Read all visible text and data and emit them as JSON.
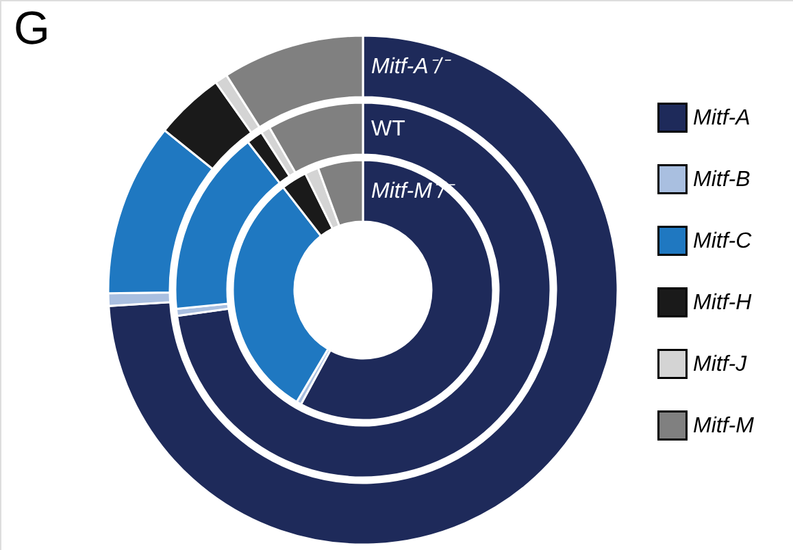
{
  "chart_data": {
    "type": "donut",
    "title": "G",
    "legend": "right",
    "categories": [
      "Mitf-A",
      "Mitf-B",
      "Mitf-C",
      "Mitf-H",
      "Mitf-J",
      "Mitf-M"
    ],
    "colors": [
      "#1e2a5a",
      "#a9bfe0",
      "#1f78c1",
      "#1a1a1a",
      "#d4d4d4",
      "#808080"
    ],
    "series": [
      {
        "name": "Mitf-M⁻/⁻",
        "values": [
          57.9,
          0.6,
          31.0,
          3.2,
          1.7,
          5.6
        ]
      },
      {
        "name": "WT",
        "values": [
          72.8,
          0.6,
          16.1,
          1.4,
          0.8,
          8.3
        ]
      },
      {
        "name": "Mitf-A⁻/⁻",
        "values": [
          74.0,
          0.8,
          11.0,
          4.4,
          0.8,
          9.0
        ]
      }
    ]
  }
}
